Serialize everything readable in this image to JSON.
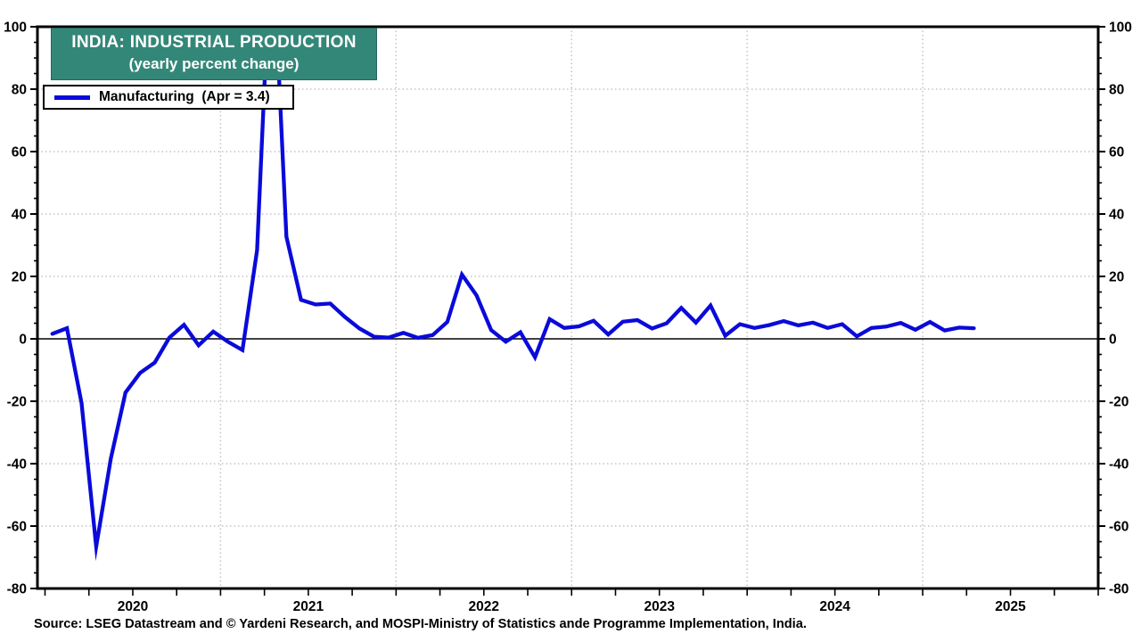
{
  "header": {
    "title": "INDIA: INDUSTRIAL PRODUCTION",
    "subtitle": "(yearly percent change)"
  },
  "legend": {
    "label": "Manufacturing  (Apr = 3.4)"
  },
  "source": "Source: LSEG Datastream and © Yardeni Research, and MOSPI-Ministry of Statistics ande Programme Implementation, India.",
  "colors": {
    "line": "#0a0ada",
    "title_bg": "#338778",
    "grid": "#c4c4c4",
    "axis": "#000000",
    "background": "#ffffff"
  },
  "chart_data": {
    "type": "line",
    "title": "INDIA: INDUSTRIAL PRODUCTION",
    "subtitle": "(yearly percent change)",
    "ylabel": "",
    "xlabel": "",
    "ylim": [
      -80,
      100
    ],
    "grid": true,
    "legend_position": "top-left",
    "y_ticks": [
      100,
      80,
      60,
      40,
      20,
      0,
      -20,
      -40,
      -60,
      -80
    ],
    "x_tick_labels": [
      "2020",
      "2021",
      "2022",
      "2023",
      "2024",
      "2025"
    ],
    "series": [
      {
        "name": "Manufacturing",
        "latest_point_label": "Apr = 3.4",
        "x": [
          "2020-01",
          "2020-02",
          "2020-03",
          "2020-04",
          "2020-05",
          "2020-06",
          "2020-07",
          "2020-08",
          "2020-09",
          "2020-10",
          "2020-11",
          "2020-12",
          "2021-01",
          "2021-02",
          "2021-03",
          "2021-04",
          "2021-05",
          "2021-06",
          "2021-07",
          "2021-08",
          "2021-09",
          "2021-10",
          "2021-11",
          "2021-12",
          "2022-01",
          "2022-02",
          "2022-03",
          "2022-04",
          "2022-05",
          "2022-06",
          "2022-07",
          "2022-08",
          "2022-09",
          "2022-10",
          "2022-11",
          "2022-12",
          "2023-01",
          "2023-02",
          "2023-03",
          "2023-04",
          "2023-05",
          "2023-06",
          "2023-07",
          "2023-08",
          "2023-09",
          "2023-10",
          "2023-11",
          "2023-12",
          "2024-01",
          "2024-02",
          "2024-03",
          "2024-04",
          "2024-05",
          "2024-06",
          "2024-07",
          "2024-08",
          "2024-09",
          "2024-10",
          "2024-11",
          "2024-12",
          "2025-01",
          "2025-02",
          "2025-03",
          "2025-04"
        ],
        "values": [
          1.6,
          3.4,
          -20.6,
          -66.6,
          -38.4,
          -17.2,
          -10.9,
          -7.6,
          0.4,
          4.5,
          -2.1,
          2.3,
          -0.9,
          -3.6,
          28.4,
          134.0,
          32.7,
          12.5,
          11.0,
          11.3,
          7.0,
          3.3,
          0.7,
          0.4,
          1.9,
          0.3,
          1.2,
          5.4,
          20.6,
          13.9,
          2.8,
          -0.9,
          2.1,
          -5.9,
          6.3,
          3.5,
          4.0,
          5.8,
          1.4,
          5.5,
          6.0,
          3.3,
          5.0,
          9.9,
          5.2,
          10.7,
          1.0,
          4.7,
          3.5,
          4.4,
          5.7,
          4.3,
          5.2,
          3.5,
          4.7,
          0.8,
          3.5,
          3.9,
          5.1,
          2.9,
          5.4,
          2.7,
          3.6,
          3.4
        ]
      }
    ]
  }
}
